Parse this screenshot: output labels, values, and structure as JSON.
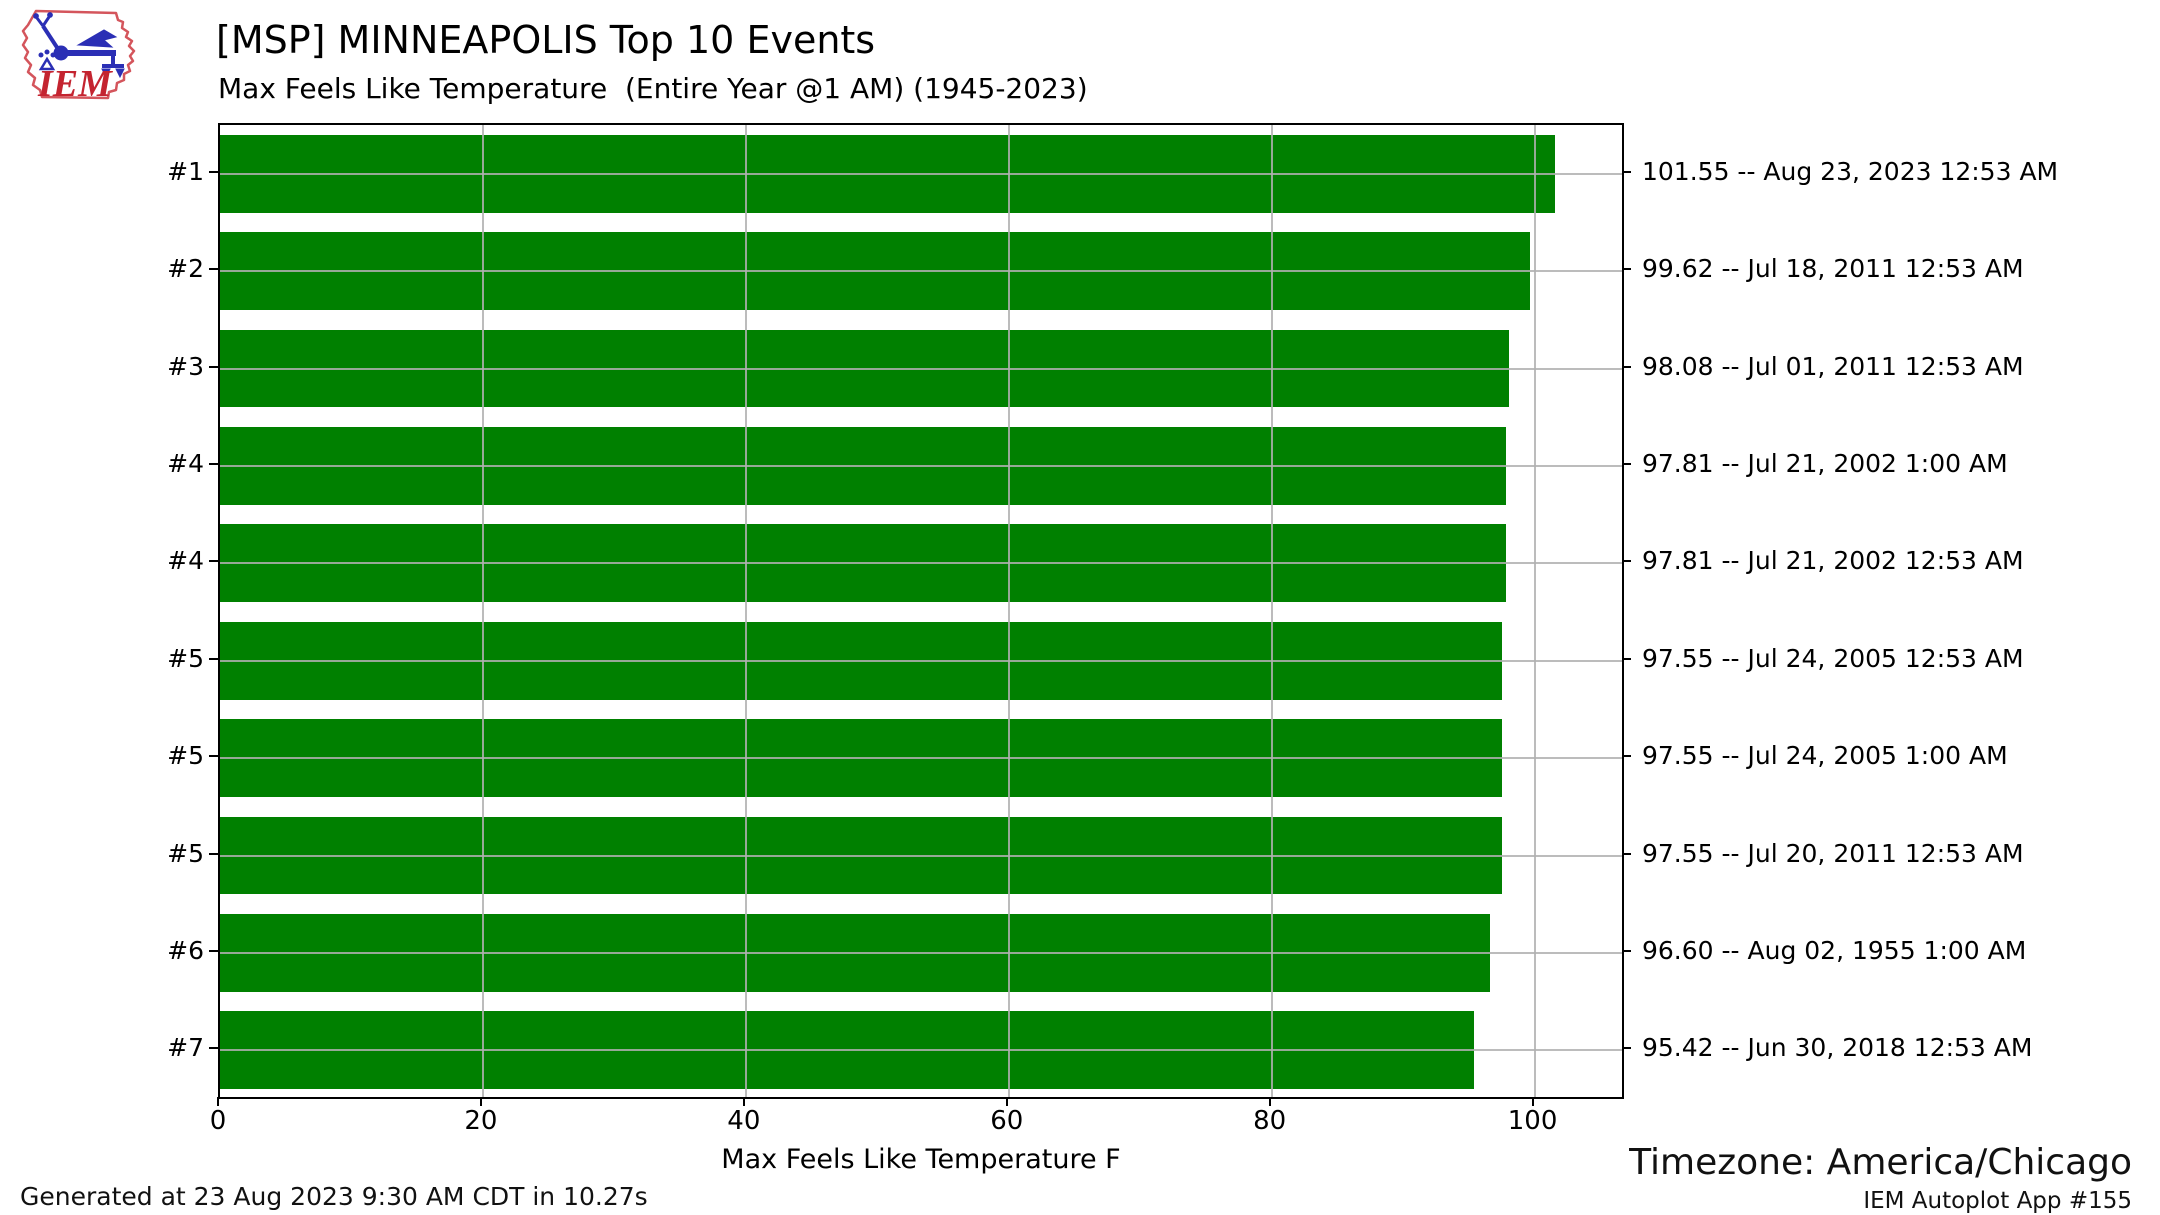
{
  "logo": {
    "text": "IEM",
    "outline_color": "#d4555c",
    "vane_color": "#2b2fb5",
    "text_color": "#c42430"
  },
  "header": {
    "title": "[MSP] MINNEAPOLIS Top 10 Events",
    "subtitle": "Max Feels Like Temperature  (Entire Year @1 AM) (1945-2023)"
  },
  "chart_data": {
    "type": "bar",
    "orientation": "horizontal",
    "title": "[MSP] MINNEAPOLIS Top 10 Events",
    "subtitle": "Max Feels Like Temperature  (Entire Year @1 AM) (1945-2023)",
    "categories": [
      "#1",
      "#2",
      "#3",
      "#4",
      "#4",
      "#5",
      "#5",
      "#5",
      "#6",
      "#7"
    ],
    "values": [
      101.55,
      99.62,
      98.08,
      97.81,
      97.81,
      97.55,
      97.55,
      97.55,
      96.6,
      95.42
    ],
    "value_labels": [
      "101.55 -- Aug 23, 2023 12:53 AM",
      "99.62 -- Jul 18, 2011 12:53 AM",
      "98.08 -- Jul 01, 2011 12:53 AM",
      "97.81 -- Jul 21, 2002 1:00 AM",
      "97.81 -- Jul 21, 2002 12:53 AM",
      "97.55 -- Jul 24, 2005 12:53 AM",
      "97.55 -- Jul 24, 2005 1:00 AM",
      "97.55 -- Jul 20, 2011 12:53 AM",
      "96.60 -- Aug 02, 1955 1:00 AM",
      "95.42 -- Jun 30, 2018 12:53 AM"
    ],
    "xlabel": "Max Feels Like Temperature F",
    "xticks": [
      0,
      20,
      40,
      60,
      80,
      100
    ],
    "xlim": [
      0,
      106.8
    ],
    "grid": true,
    "legend": "none",
    "bar_color": "#008000",
    "grid_color": "#b0b0b0"
  },
  "footer": {
    "generated": "Generated at 23 Aug 2023 9:30 AM CDT in 10.27s",
    "timezone": "Timezone: America/Chicago",
    "app": "IEM Autoplot App #155"
  }
}
